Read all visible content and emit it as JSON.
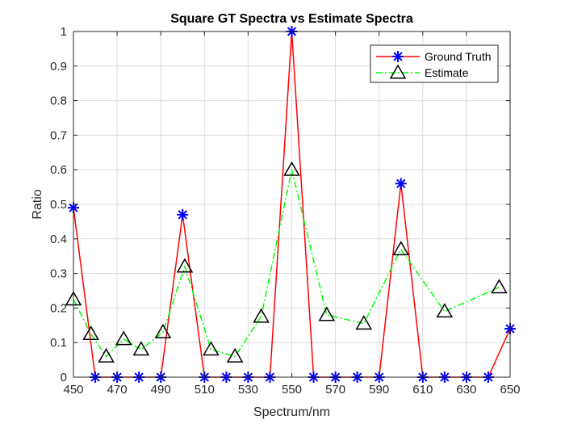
{
  "chart_data": {
    "type": "line",
    "title": "Square GT Spectra vs Estimate Spectra",
    "xlabel": "Spectrum/nm",
    "ylabel": "Ratio",
    "xlim": [
      450,
      650
    ],
    "ylim": [
      0,
      1
    ],
    "x_ticks": [
      450,
      470,
      490,
      510,
      530,
      550,
      570,
      590,
      610,
      630,
      650
    ],
    "y_ticks": [
      0,
      0.1,
      0.2,
      0.3,
      0.4,
      0.5,
      0.6,
      0.7,
      0.8,
      0.9,
      1
    ],
    "y_tick_labels": [
      "0",
      "0.1",
      "0.2",
      "0.3",
      "0.4",
      "0.5",
      "0.6",
      "0.7",
      "0.8",
      "0.9",
      "1"
    ],
    "grid": true,
    "legend_position": "top-right",
    "series": [
      {
        "name": "Ground Truth",
        "color": "#ff0000",
        "marker_color": "#0000ff",
        "marker": "asterisk",
        "line_style": "solid",
        "x": [
          450,
          460,
          470,
          480,
          490,
          500,
          510,
          520,
          530,
          540,
          550,
          560,
          570,
          580,
          590,
          600,
          610,
          620,
          630,
          640,
          650
        ],
        "y": [
          0.49,
          0,
          0,
          0,
          0,
          0.47,
          0,
          0,
          0,
          0,
          1.0,
          0,
          0,
          0,
          0,
          0.56,
          0,
          0,
          0,
          0,
          0.14
        ]
      },
      {
        "name": "Estimate",
        "color": "#00ff00",
        "marker_color": "#000000",
        "marker": "triangle",
        "line_style": "dash-dot",
        "x": [
          450,
          458,
          465,
          473,
          481,
          491,
          501,
          513,
          524,
          536,
          550,
          566,
          583,
          600,
          620,
          645
        ],
        "y": [
          0.225,
          0.125,
          0.06,
          0.11,
          0.08,
          0.13,
          0.32,
          0.08,
          0.06,
          0.175,
          0.6,
          0.18,
          0.155,
          0.37,
          0.19,
          0.26
        ]
      }
    ]
  }
}
